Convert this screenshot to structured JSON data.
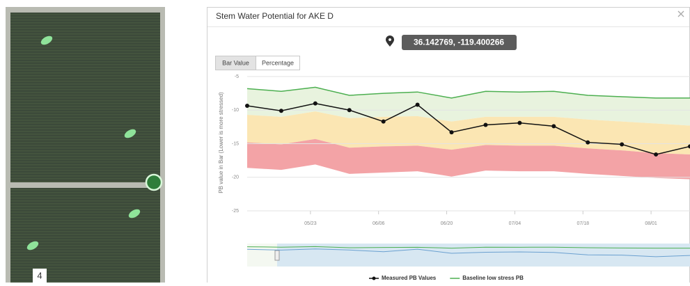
{
  "map": {
    "field_label": "4"
  },
  "modal": {
    "title": "Stem Water Potential for AKE D",
    "coordinates": "36.142769, -119.400266",
    "tabs": [
      "Bar Value",
      "Percentage"
    ]
  },
  "chart_data": {
    "type": "line",
    "y_label": "PB value in Bar (Lower is more stressed)",
    "x": [
      "05/10",
      "05/17",
      "05/24",
      "05/31",
      "06/07",
      "06/14",
      "06/21",
      "06/28",
      "07/05",
      "07/12",
      "07/19",
      "07/26",
      "08/02",
      "08/09"
    ],
    "series": [
      {
        "name": "Measured PB Values",
        "color": "#111111",
        "markers": true,
        "values": [
          -9.35,
          -10.1,
          -9.0,
          -10.0,
          -11.7,
          -9.2,
          -13.3,
          -12.2,
          -11.9,
          -12.4,
          -14.8,
          -15.1,
          -16.6,
          -15.4
        ]
      },
      {
        "name": "Baseline low stress PB",
        "color": "#4caf50",
        "markers": false,
        "values": [
          -6.8,
          -7.2,
          -6.6,
          -7.8,
          -7.5,
          -7.3,
          -8.2,
          -7.2,
          -7.3,
          -7.2,
          -7.8,
          -8.0,
          -8.2,
          -8.2
        ]
      }
    ],
    "bands": [
      {
        "color": "#e8f3de",
        "values": [
          -10.7,
          -11.0,
          -10.2,
          -11.2,
          -11.0,
          -10.9,
          -11.7,
          -11.0,
          -11.0,
          -11.0,
          -11.4,
          -11.7,
          -12.0,
          -12.3
        ]
      },
      {
        "color": "#fbe6b3",
        "values": [
          -14.8,
          -15.1,
          -14.3,
          -15.6,
          -15.4,
          -15.3,
          -15.9,
          -15.2,
          -15.3,
          -15.3,
          -15.7,
          -16.0,
          -16.4,
          -16.6
        ]
      },
      {
        "color": "#f3a3a6",
        "values": [
          -18.6,
          -18.9,
          -18.1,
          -19.5,
          -19.3,
          -19.1,
          -19.9,
          -19.0,
          -19.1,
          -19.1,
          -19.5,
          -19.8,
          -20.1,
          -20.3
        ]
      }
    ],
    "xlim": [
      "05/10",
      "08/09"
    ],
    "xticks": [
      "05/23",
      "06/06",
      "06/20",
      "07/04",
      "07/18",
      "08/01"
    ],
    "ylim": [
      -25,
      -5
    ],
    "yticks": [
      -5,
      -10,
      -15,
      -20,
      -25
    ],
    "grid": true
  }
}
